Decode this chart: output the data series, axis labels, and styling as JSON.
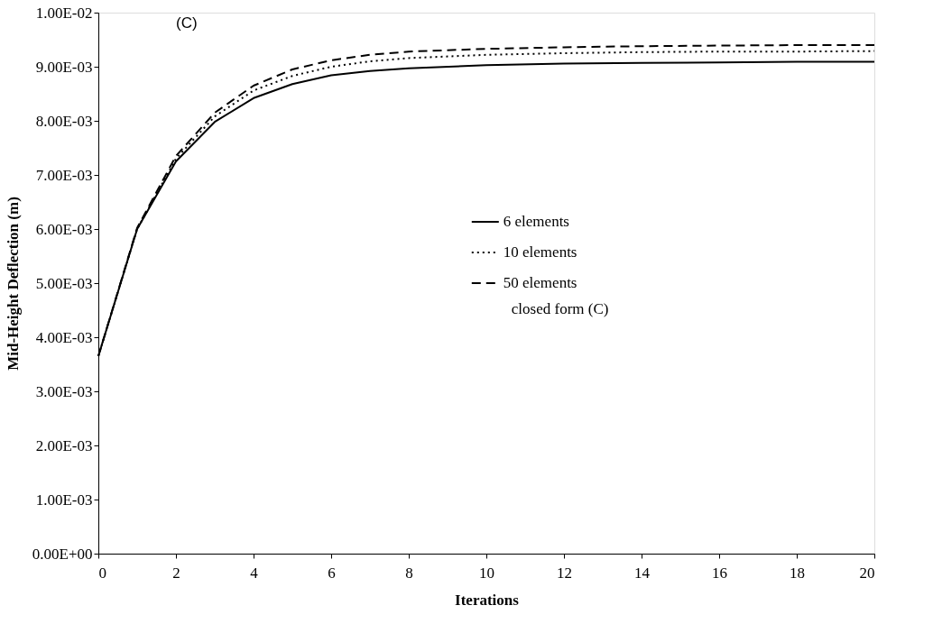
{
  "chart_data": {
    "type": "line",
    "xlabel": "Iterations",
    "ylabel": "Mid-Height Deflection (m)",
    "x": [
      0,
      1,
      2,
      3,
      4,
      5,
      6,
      7,
      8,
      10,
      12,
      14,
      16,
      18,
      20
    ],
    "series": [
      {
        "name": "6 elements",
        "color": "#000000",
        "line_style": "solid",
        "values": [
          0.00365,
          0.006,
          0.00725,
          0.00798,
          0.00842,
          0.00868,
          0.00884,
          0.00892,
          0.00897,
          0.00903,
          0.00906,
          0.00907,
          0.00908,
          0.00909,
          0.00909
        ]
      },
      {
        "name": "10 elements",
        "color": "#000000",
        "line_style": "dotted",
        "values": [
          0.00365,
          0.006,
          0.0073,
          0.00808,
          0.00856,
          0.00883,
          0.009,
          0.0091,
          0.00916,
          0.00922,
          0.00925,
          0.00927,
          0.00928,
          0.00928,
          0.00929
        ]
      },
      {
        "name": "50 elements",
        "color": "#000000",
        "line_style": "dashed",
        "values": [
          0.00365,
          0.00602,
          0.00735,
          0.00815,
          0.00865,
          0.00895,
          0.00912,
          0.00922,
          0.00928,
          0.00933,
          0.00936,
          0.00938,
          0.00939,
          0.0094,
          0.0094
        ]
      }
    ],
    "xlim": [
      0,
      20
    ],
    "xticks": [
      0,
      2,
      4,
      6,
      8,
      10,
      12,
      14,
      16,
      18,
      20
    ],
    "ylim": [
      0,
      0.01
    ],
    "yticks": [
      {
        "value": 0,
        "label": "0.00E+00"
      },
      {
        "value": 0.001,
        "label": "1.00E-03"
      },
      {
        "value": 0.002,
        "label": "2.00E-03"
      },
      {
        "value": 0.003,
        "label": "3.00E-03"
      },
      {
        "value": 0.004,
        "label": "4.00E-03"
      },
      {
        "value": 0.005,
        "label": "5.00E-03"
      },
      {
        "value": 0.006,
        "label": "6.00E-03"
      },
      {
        "value": 0.007,
        "label": "7.00E-03"
      },
      {
        "value": 0.008,
        "label": "8.00E-03"
      },
      {
        "value": 0.009,
        "label": "9.00E-03"
      },
      {
        "value": 0.01,
        "label": "1.00E-02"
      }
    ],
    "annotations": [
      "(C)",
      "closed form (C)"
    ],
    "legend": "right",
    "grid": false
  }
}
